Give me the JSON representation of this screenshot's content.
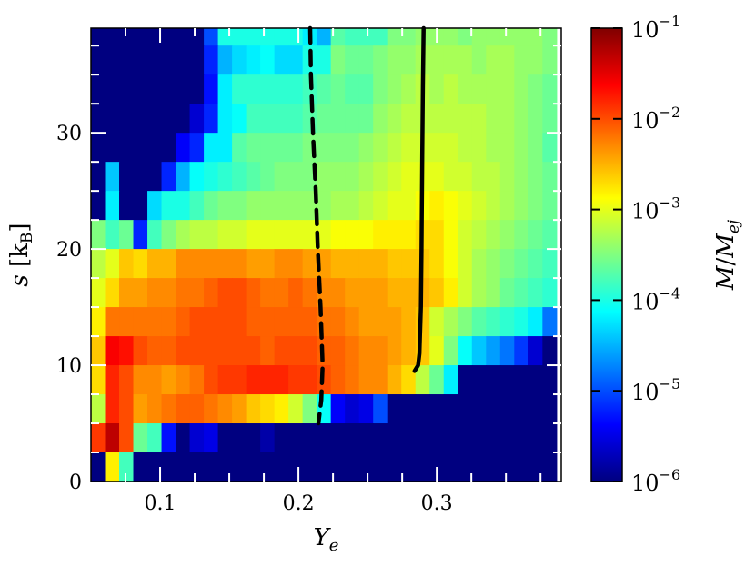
{
  "chart_data": {
    "type": "heatmap",
    "title": "",
    "xlabel": "Y_e",
    "ylabel": "s [k_B]",
    "colorbar_label": "M/M_ej",
    "colormap": "jet",
    "color_scale": "log",
    "color_range": [
      1e-06,
      0.1
    ],
    "xlim": [
      0.05,
      0.39
    ],
    "ylim": [
      0,
      39
    ],
    "x_ticks": [
      0.1,
      0.2,
      0.3
    ],
    "x_tick_labels": [
      "0.1",
      "0.2",
      "0.3"
    ],
    "y_ticks": [
      0,
      10,
      20,
      30
    ],
    "y_tick_labels": [
      "0",
      "10",
      "20",
      "30"
    ],
    "colorbar_ticks": [
      {
        "exp": -1,
        "base": "10",
        "sup": "−1"
      },
      {
        "exp": -2,
        "base": "10",
        "sup": "−2"
      },
      {
        "exp": -3,
        "base": "10",
        "sup": "−3"
      },
      {
        "exp": -4,
        "base": "10",
        "sup": "−4"
      },
      {
        "exp": -5,
        "base": "10",
        "sup": "−5"
      },
      {
        "exp": -6,
        "base": "10",
        "sup": "−6"
      }
    ],
    "grid": {
      "x_edges_start": 0.05,
      "x_step": 0.0102,
      "nx": 33,
      "y_edges_start": 0,
      "y_step": 2.5,
      "ny": 16,
      "row_order": "top_to_bottom",
      "log10_values": [
        [
          -6,
          -6,
          -6,
          -6,
          -6,
          -6,
          -6,
          -6,
          -5,
          -4,
          -4,
          -4,
          -4,
          -4,
          -4,
          -4.2,
          -4.5,
          -3.7,
          -3.8,
          -3.8,
          -3.8,
          -3.5,
          -3.5,
          -3.4,
          -3.4,
          -3.4,
          -3.5,
          -3.4,
          -3.4,
          -3.4,
          -3.4,
          -3.4,
          -3.5
        ],
        [
          -6,
          -6,
          -6,
          -6,
          -6,
          -6,
          -6,
          -6,
          -5.2,
          -4.5,
          -4.3,
          -4.2,
          -4.1,
          -4.3,
          -4.3,
          -4,
          -4,
          -3.5,
          -3.6,
          -3.6,
          -3.5,
          -3.4,
          -3.4,
          -3.3,
          -3.3,
          -3.3,
          -3.3,
          -3.4,
          -3.3,
          -3.3,
          -3.4,
          -3.4,
          -3.5
        ],
        [
          -6,
          -6,
          -6,
          -6,
          -6,
          -6,
          -6,
          -6,
          -5.3,
          -4.2,
          -3.9,
          -3.9,
          -3.9,
          -3.9,
          -3.9,
          -3.8,
          -3.7,
          -3.6,
          -3.7,
          -3.7,
          -3.5,
          -3.4,
          -3.3,
          -3.2,
          -3.3,
          -3.2,
          -3.3,
          -3.3,
          -3.3,
          -3.3,
          -3.4,
          -3.5,
          -3.6
        ],
        [
          -6,
          -6,
          -6,
          -6,
          -6,
          -6,
          -6,
          -5.6,
          -5.2,
          -4.2,
          -4.1,
          -3.8,
          -3.8,
          -3.8,
          -3.8,
          -3.7,
          -3.6,
          -3.6,
          -3.6,
          -3.6,
          -3.4,
          -3.3,
          -3.2,
          -3.2,
          -3.2,
          -3.2,
          -3.2,
          -3.2,
          -3.3,
          -3.3,
          -3.4,
          -3.5,
          -3.6
        ],
        [
          -6,
          -6,
          -6,
          -6,
          -6,
          -6,
          -5.4,
          -5.2,
          -4.2,
          -4.2,
          -3.7,
          -3.6,
          -3.6,
          -3.6,
          -3.6,
          -3.5,
          -3.5,
          -3.5,
          -3.5,
          -3.4,
          -3.3,
          -3.2,
          -3.1,
          -3.1,
          -3.1,
          -3.1,
          -3.2,
          -3.2,
          -3.3,
          -3.3,
          -3.4,
          -3.5,
          -3.7
        ],
        [
          -6,
          -4.4,
          -6,
          -6,
          -6,
          -5.2,
          -4.5,
          -4.1,
          -4,
          -3.9,
          -3.8,
          -3.7,
          -3.6,
          -3.5,
          -3.5,
          -3.5,
          -3.4,
          -3.4,
          -3.4,
          -3.3,
          -3.2,
          -3.1,
          -3,
          -3,
          -3,
          -3.1,
          -3.1,
          -3.2,
          -3.2,
          -3.3,
          -3.4,
          -3.5,
          -3.6
        ],
        [
          -6,
          -4.2,
          -6,
          -6,
          -4.3,
          -4,
          -4,
          -3.8,
          -3.6,
          -3.5,
          -3.5,
          -3.4,
          -3.4,
          -3.4,
          -3.4,
          -3.4,
          -3.4,
          -3.3,
          -3.3,
          -3.2,
          -3.1,
          -3,
          -3,
          -2.9,
          -2.8,
          -2.9,
          -3,
          -3.1,
          -3.2,
          -3.3,
          -3.4,
          -3.5,
          -3.6
        ],
        [
          -3.5,
          -3.8,
          -3.6,
          -5.2,
          -3.8,
          -3.5,
          -3.3,
          -3.2,
          -3.2,
          -3.1,
          -3.1,
          -3,
          -3,
          -3,
          -3,
          -3,
          -3,
          -2.9,
          -2.9,
          -2.9,
          -2.8,
          -2.8,
          -2.8,
          -2.7,
          -2.7,
          -2.9,
          -3.1,
          -3.2,
          -3.3,
          -3.4,
          -3.5,
          -3.6,
          -3.7
        ],
        [
          -3.2,
          -3,
          -2.6,
          -2.7,
          -2.5,
          -2.5,
          -2.3,
          -2.3,
          -2.3,
          -2.3,
          -2.3,
          -2.4,
          -2.4,
          -2.3,
          -2.3,
          -2.4,
          -2.4,
          -2.5,
          -2.5,
          -2.5,
          -2.5,
          -2.6,
          -2.6,
          -2.6,
          -2.7,
          -2.9,
          -3.1,
          -3.3,
          -3.4,
          -3.5,
          -3.6,
          -3.7,
          -3.8
        ],
        [
          -3,
          -2.7,
          -2.4,
          -2.4,
          -2.3,
          -2.3,
          -2.2,
          -2.2,
          -2.1,
          -2,
          -2,
          -2.1,
          -2.2,
          -2.2,
          -2.1,
          -2.2,
          -2.3,
          -2.3,
          -2.4,
          -2.4,
          -2.4,
          -2.5,
          -2.5,
          -2.5,
          -2.6,
          -2.8,
          -3.1,
          -3.3,
          -3.4,
          -3.6,
          -3.7,
          -3.8,
          -3.9
        ],
        [
          -2.8,
          -2.2,
          -2.2,
          -2.2,
          -2.2,
          -2.2,
          -2.1,
          -2,
          -2,
          -2,
          -2,
          -2.1,
          -2.1,
          -2.1,
          -2.1,
          -2.1,
          -2.2,
          -2.2,
          -2.3,
          -2.4,
          -2.4,
          -2.4,
          -2.5,
          -2.6,
          -3.1,
          -3.3,
          -3.5,
          -3.7,
          -3.8,
          -3.9,
          -4,
          -4.2,
          -4.8
        ],
        [
          -2.6,
          -1.6,
          -1.7,
          -2,
          -2.1,
          -2.1,
          -2,
          -2,
          -2,
          -2,
          -2,
          -2,
          -2.1,
          -2,
          -2,
          -2,
          -2.1,
          -2.1,
          -2.2,
          -2.3,
          -2.3,
          -2.4,
          -2.5,
          -2.6,
          -3,
          -3.5,
          -4.1,
          -4.4,
          -4.6,
          -4.8,
          -5.1,
          -5.6,
          -6
        ],
        [
          -2.7,
          -1.8,
          -2,
          -2.3,
          -2.3,
          -2.4,
          -2.3,
          -2.2,
          -2,
          -1.9,
          -1.9,
          -1.8,
          -1.8,
          -1.8,
          -1.9,
          -1.9,
          -2,
          -2.1,
          -2.2,
          -2.3,
          -2.3,
          -2.5,
          -2.7,
          -3.2,
          -3.6,
          -4.2,
          -6,
          -6,
          -6,
          -6,
          -6,
          -6,
          -6
        ],
        [
          -3.2,
          -1.8,
          -2,
          -2.4,
          -2.3,
          -2.2,
          -2.1,
          -2.1,
          -2.2,
          -2.3,
          -2.4,
          -2.6,
          -2.7,
          -2.8,
          -3.1,
          -3.5,
          -4.1,
          -5.4,
          -5.6,
          -5.5,
          -5,
          -6,
          -6,
          -6,
          -6,
          -6,
          -6,
          -6,
          -6,
          -6,
          -6,
          -6,
          -6
        ],
        [
          -1.9,
          -1.3,
          -2,
          -3.6,
          -3.8,
          -5.3,
          -6,
          -5.6,
          -5.5,
          -6,
          -6,
          -6,
          -5.8,
          -6,
          -6,
          -6,
          -6,
          -6,
          -6,
          -6,
          -6,
          -6,
          -6,
          -6,
          -6,
          -6,
          -6,
          -6,
          -6,
          -6,
          -6,
          -6,
          -6
        ],
        [
          -6,
          -2.8,
          -3.8,
          -6,
          -6,
          -6,
          -6,
          -6,
          -6,
          -6,
          -6,
          -6,
          -6,
          -6,
          -6,
          -6,
          -6,
          -6,
          -6,
          -6,
          -6,
          -6,
          -6,
          -6,
          -6,
          -6,
          -6,
          -6,
          -6,
          -6,
          -6,
          -6,
          -6
        ]
      ]
    },
    "series": [
      {
        "style": "dashed",
        "color": "#000000",
        "points": [
          [
            0.2085,
            39
          ],
          [
            0.209,
            35
          ],
          [
            0.2105,
            30
          ],
          [
            0.2125,
            25
          ],
          [
            0.214,
            20
          ],
          [
            0.216,
            15
          ],
          [
            0.2175,
            10
          ],
          [
            0.2165,
            7
          ],
          [
            0.2145,
            5
          ]
        ]
      },
      {
        "style": "solid",
        "color": "#000000",
        "points": [
          [
            0.2905,
            39
          ],
          [
            0.29,
            34
          ],
          [
            0.2895,
            28
          ],
          [
            0.289,
            20
          ],
          [
            0.2885,
            15
          ],
          [
            0.2875,
            11
          ],
          [
            0.2865,
            10
          ],
          [
            0.284,
            9.5
          ]
        ]
      }
    ]
  }
}
